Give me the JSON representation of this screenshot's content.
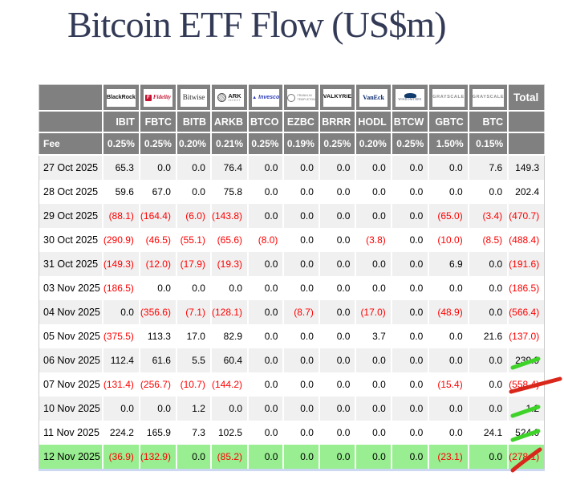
{
  "title": "Bitcoin ETF Flow (US$m)",
  "table_labels": {
    "fee_label": "Fee",
    "total_label": "Total"
  },
  "colors": {
    "header_bg": "#808080",
    "alt_row_bg": "#f0f0f0",
    "highlight_row_bg": "#98ee90",
    "negative_text": "#ff0000",
    "annotation_green": "#3fd32a",
    "annotation_red": "#da271c",
    "title_text": "#333a56"
  },
  "chart_data": {
    "type": "table",
    "title": "Bitcoin ETF Flow (US$m)",
    "columns": [
      {
        "ticker": "IBIT",
        "fee": "0.25%",
        "provider": "BlackRock",
        "logo": "blackrock",
        "logo_text": [
          "BlackRock"
        ]
      },
      {
        "ticker": "FBTC",
        "fee": "0.25%",
        "provider": "Fidelity",
        "logo": "fidelity",
        "logo_text": [
          "F",
          "Fidelity"
        ]
      },
      {
        "ticker": "BITB",
        "fee": "0.20%",
        "provider": "Bitwise",
        "logo": "bitwise",
        "logo_text": [
          "Bitwise"
        ]
      },
      {
        "ticker": "ARKB",
        "fee": "0.21%",
        "provider": "ARK Invest",
        "logo": "ark",
        "logo_text": [
          "ARK",
          "INVEST"
        ]
      },
      {
        "ticker": "BTCO",
        "fee": "0.25%",
        "provider": "Invesco",
        "logo": "invesco",
        "logo_text": [
          "Invesco"
        ]
      },
      {
        "ticker": "EZBC",
        "fee": "0.19%",
        "provider": "Franklin Templeton",
        "logo": "franklin",
        "logo_text": [
          "FRANKLIN",
          "TEMPLETON"
        ]
      },
      {
        "ticker": "BRRR",
        "fee": "0.25%",
        "provider": "Valkyrie",
        "logo": "valkyrie",
        "logo_text": [
          "VALKYRIE"
        ]
      },
      {
        "ticker": "HODL",
        "fee": "0.20%",
        "provider": "VanEck",
        "logo": "vaneck",
        "logo_text": [
          "VanEck"
        ]
      },
      {
        "ticker": "BTCW",
        "fee": "0.25%",
        "provider": "WisdomTree",
        "logo": "wisdomtree",
        "logo_text": [
          "WISDOMTREE"
        ]
      },
      {
        "ticker": "GBTC",
        "fee": "1.50%",
        "provider": "Grayscale",
        "logo": "grayscale",
        "logo_text": [
          "GRAYSCALE"
        ]
      },
      {
        "ticker": "BTC",
        "fee": "0.15%",
        "provider": "Grayscale",
        "logo": "grayscale",
        "logo_text": [
          "GRAYSCALE"
        ]
      }
    ],
    "rows": [
      {
        "date": "27 Oct 2025",
        "values": [
          65.3,
          0.0,
          0.0,
          76.4,
          0.0,
          0.0,
          0.0,
          0.0,
          0.0,
          0.0,
          7.6
        ],
        "total": 149.3,
        "highlight": false
      },
      {
        "date": "28 Oct 2025",
        "values": [
          59.6,
          67.0,
          0.0,
          75.8,
          0.0,
          0.0,
          0.0,
          0.0,
          0.0,
          0.0,
          0.0
        ],
        "total": 202.4,
        "highlight": false
      },
      {
        "date": "29 Oct 2025",
        "values": [
          -88.1,
          -164.4,
          -6.0,
          -143.8,
          0.0,
          0.0,
          0.0,
          0.0,
          0.0,
          -65.0,
          -3.4
        ],
        "total": -470.7,
        "highlight": false
      },
      {
        "date": "30 Oct 2025",
        "values": [
          -290.9,
          -46.5,
          -55.1,
          -65.6,
          -8.0,
          0.0,
          0.0,
          -3.8,
          0.0,
          -10.0,
          -8.5
        ],
        "total": -488.4,
        "highlight": false
      },
      {
        "date": "31 Oct 2025",
        "values": [
          -149.3,
          -12.0,
          -17.9,
          -19.3,
          0.0,
          0.0,
          0.0,
          0.0,
          0.0,
          6.9,
          0.0
        ],
        "total": -191.6,
        "highlight": false
      },
      {
        "date": "03 Nov 2025",
        "values": [
          -186.5,
          0.0,
          0.0,
          0.0,
          0.0,
          0.0,
          0.0,
          0.0,
          0.0,
          0.0,
          0.0
        ],
        "total": -186.5,
        "highlight": false
      },
      {
        "date": "04 Nov 2025",
        "values": [
          0.0,
          -356.6,
          -7.1,
          -128.1,
          0.0,
          -8.7,
          0.0,
          -17.0,
          0.0,
          -48.9,
          0.0
        ],
        "total": -566.4,
        "highlight": false
      },
      {
        "date": "05 Nov 2025",
        "values": [
          -375.5,
          113.3,
          17.0,
          82.9,
          0.0,
          0.0,
          0.0,
          3.7,
          0.0,
          0.0,
          21.6
        ],
        "total": -137.0,
        "highlight": false
      },
      {
        "date": "06 Nov 2025",
        "values": [
          112.4,
          61.6,
          5.5,
          60.4,
          0.0,
          0.0,
          0.0,
          0.0,
          0.0,
          0.0,
          0.0
        ],
        "total": 239.9,
        "highlight": false
      },
      {
        "date": "07 Nov 2025",
        "values": [
          -131.4,
          -256.7,
          -10.7,
          -144.2,
          0.0,
          0.0,
          0.0,
          0.0,
          0.0,
          -15.4,
          0.0
        ],
        "total": -558.4,
        "highlight": false
      },
      {
        "date": "10 Nov 2025",
        "values": [
          0.0,
          0.0,
          1.2,
          0.0,
          0.0,
          0.0,
          0.0,
          0.0,
          0.0,
          0.0,
          0.0
        ],
        "total": 1.2,
        "highlight": false
      },
      {
        "date": "11 Nov 2025",
        "values": [
          224.2,
          165.9,
          7.3,
          102.5,
          0.0,
          0.0,
          0.0,
          0.0,
          0.0,
          0.0,
          24.1
        ],
        "total": 524.0,
        "highlight": false
      },
      {
        "date": "12 Nov 2025",
        "values": [
          -36.9,
          -132.9,
          0.0,
          -85.2,
          0.0,
          0.0,
          0.0,
          0.0,
          0.0,
          -23.1,
          0.0
        ],
        "total": -278.1,
        "highlight": true
      }
    ]
  },
  "annotations": [
    {
      "row_date": "06 Nov 2025",
      "color": "green",
      "length": "short"
    },
    {
      "row_date": "07 Nov 2025",
      "color": "red",
      "length": "long"
    },
    {
      "row_date": "10 Nov 2025",
      "color": "green",
      "length": "short"
    },
    {
      "row_date": "11 Nov 2025",
      "color": "green",
      "length": "short"
    },
    {
      "row_date": "12 Nov 2025",
      "color": "red",
      "length": "steep"
    }
  ]
}
